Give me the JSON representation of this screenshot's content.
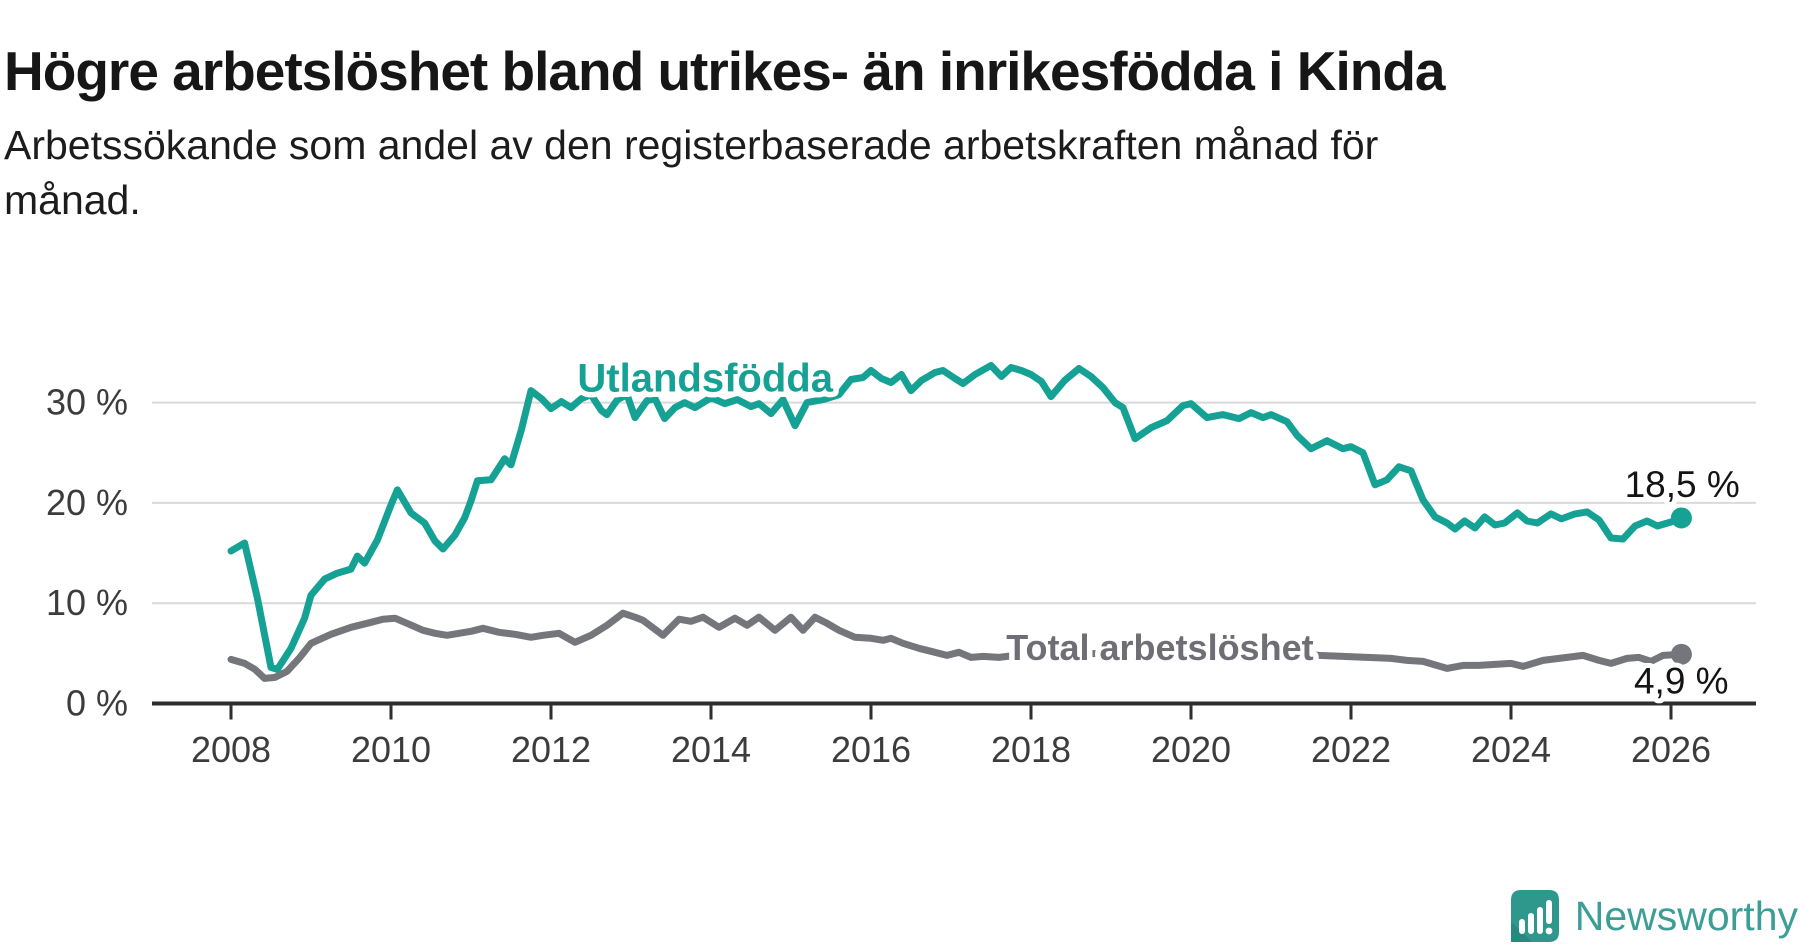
{
  "header": {
    "title": "Högre arbetslöshet bland utrikes- än inrikesfödda i Kinda",
    "subtitle_line1": "Arbetssökande som andel av den registerbaserade arbetskraften månad för",
    "subtitle_line2": "månad."
  },
  "footer": {
    "brand": "Newsworthy",
    "logo_icon": "bar-chart-exclamation-badge",
    "brand_color": "#3d9e97",
    "badge_color": "#2f988d"
  },
  "colors": {
    "accent_teal": "#16a195",
    "line_gray": "#75757c",
    "grid": "#d9d9d9",
    "axis": "#2e2e2e",
    "tick_label": "#3c3c3c",
    "value_label": "#141414"
  },
  "chart_data": {
    "type": "line",
    "title": "Högre arbetslöshet bland utrikes- än inrikesfödda i Kinda",
    "xlabel": "",
    "ylabel": "Arbetssökande som andel av den registerbaserade arbetskraften",
    "x_unit": "year (monthly data)",
    "y_unit": "percent",
    "xlim": [
      2007.6,
      2026.7
    ],
    "ylim": [
      0,
      35
    ],
    "grid": "horizontal",
    "legend_position": "inline-labels",
    "xticks": [
      {
        "value": 2008,
        "label": "2008"
      },
      {
        "value": 2010,
        "label": "2010"
      },
      {
        "value": 2012,
        "label": "2012"
      },
      {
        "value": 2014,
        "label": "2014"
      },
      {
        "value": 2016,
        "label": "2016"
      },
      {
        "value": 2018,
        "label": "2018"
      },
      {
        "value": 2020,
        "label": "2020"
      },
      {
        "value": 2022,
        "label": "2022"
      },
      {
        "value": 2024,
        "label": "2024"
      },
      {
        "value": 2026,
        "label": "2026"
      }
    ],
    "yticks": [
      {
        "value": 0,
        "label": "0 %"
      },
      {
        "value": 10,
        "label": "10 %"
      },
      {
        "value": 20,
        "label": "20 %"
      },
      {
        "value": 30,
        "label": "30 %"
      }
    ],
    "series": [
      {
        "name": "Total arbetslöshet",
        "color": "#75757c",
        "label_color": "#6e6e74",
        "end_label": "4,9 %",
        "end_value": 4.9,
        "label_at": {
          "x": 2017.69,
          "y": 4.35
        },
        "end_label_at": {
          "x": 2026.72,
          "y": 1.0
        },
        "points": [
          [
            2008.0,
            4.4
          ],
          [
            2008.17,
            4.0
          ],
          [
            2008.3,
            3.4
          ],
          [
            2008.42,
            2.5
          ],
          [
            2008.55,
            2.6
          ],
          [
            2008.7,
            3.2
          ],
          [
            2008.85,
            4.5
          ],
          [
            2009.0,
            6.0
          ],
          [
            2009.25,
            6.9
          ],
          [
            2009.5,
            7.6
          ],
          [
            2009.75,
            8.1
          ],
          [
            2009.9,
            8.4
          ],
          [
            2010.05,
            8.5
          ],
          [
            2010.2,
            8.0
          ],
          [
            2010.4,
            7.3
          ],
          [
            2010.55,
            7.0
          ],
          [
            2010.7,
            6.8
          ],
          [
            2010.85,
            7.0
          ],
          [
            2011.0,
            7.2
          ],
          [
            2011.15,
            7.5
          ],
          [
            2011.35,
            7.1
          ],
          [
            2011.55,
            6.9
          ],
          [
            2011.75,
            6.6
          ],
          [
            2011.9,
            6.8
          ],
          [
            2012.1,
            7.0
          ],
          [
            2012.3,
            6.1
          ],
          [
            2012.5,
            6.8
          ],
          [
            2012.7,
            7.8
          ],
          [
            2012.9,
            9.0
          ],
          [
            2013.05,
            8.6
          ],
          [
            2013.15,
            8.3
          ],
          [
            2013.4,
            6.8
          ],
          [
            2013.6,
            8.4
          ],
          [
            2013.75,
            8.2
          ],
          [
            2013.9,
            8.6
          ],
          [
            2014.1,
            7.6
          ],
          [
            2014.3,
            8.5
          ],
          [
            2014.45,
            7.8
          ],
          [
            2014.6,
            8.6
          ],
          [
            2014.8,
            7.3
          ],
          [
            2015.0,
            8.6
          ],
          [
            2015.15,
            7.3
          ],
          [
            2015.3,
            8.6
          ],
          [
            2015.45,
            8.0
          ],
          [
            2015.6,
            7.3
          ],
          [
            2015.8,
            6.6
          ],
          [
            2016.0,
            6.5
          ],
          [
            2016.15,
            6.3
          ],
          [
            2016.25,
            6.5
          ],
          [
            2016.4,
            6.0
          ],
          [
            2016.6,
            5.5
          ],
          [
            2016.75,
            5.2
          ],
          [
            2016.95,
            4.8
          ],
          [
            2017.1,
            5.1
          ],
          [
            2017.25,
            4.6
          ],
          [
            2017.4,
            4.7
          ],
          [
            2017.6,
            4.6
          ],
          [
            2017.8,
            4.8
          ],
          [
            2018.0,
            5.0
          ],
          [
            2018.3,
            5.2
          ],
          [
            2018.6,
            5.1
          ],
          [
            2018.9,
            4.9
          ],
          [
            2019.2,
            4.8
          ],
          [
            2019.5,
            4.8
          ],
          [
            2019.8,
            5.0
          ],
          [
            2020.1,
            5.4
          ],
          [
            2020.4,
            5.6
          ],
          [
            2020.7,
            5.5
          ],
          [
            2021.0,
            5.3
          ],
          [
            2021.3,
            5.0
          ],
          [
            2021.6,
            4.8
          ],
          [
            2021.9,
            4.7
          ],
          [
            2022.2,
            4.6
          ],
          [
            2022.5,
            4.5
          ],
          [
            2022.7,
            4.3
          ],
          [
            2022.9,
            4.2
          ],
          [
            2023.2,
            3.5
          ],
          [
            2023.4,
            3.8
          ],
          [
            2023.6,
            3.8
          ],
          [
            2023.8,
            3.9
          ],
          [
            2024.0,
            4.0
          ],
          [
            2024.15,
            3.7
          ],
          [
            2024.4,
            4.3
          ],
          [
            2024.6,
            4.5
          ],
          [
            2024.9,
            4.8
          ],
          [
            2025.1,
            4.3
          ],
          [
            2025.25,
            4.0
          ],
          [
            2025.45,
            4.5
          ],
          [
            2025.6,
            4.6
          ],
          [
            2025.75,
            4.2
          ],
          [
            2025.9,
            4.8
          ],
          [
            2026.13,
            4.9
          ]
        ]
      },
      {
        "name": "Utlandsfödda",
        "color": "#16a195",
        "label_color": "#16a195",
        "end_label": "18,5 %",
        "end_value": 18.5,
        "label_at": {
          "x": 2012.33,
          "y": 31.1
        },
        "end_label_at": {
          "x": 2026.86,
          "y": 20.6
        },
        "points": [
          [
            2008.0,
            15.2
          ],
          [
            2008.17,
            16.0
          ],
          [
            2008.33,
            10.5
          ],
          [
            2008.5,
            3.6
          ],
          [
            2008.58,
            3.4
          ],
          [
            2008.75,
            5.5
          ],
          [
            2008.92,
            8.5
          ],
          [
            2009.0,
            10.8
          ],
          [
            2009.17,
            12.4
          ],
          [
            2009.33,
            13.0
          ],
          [
            2009.5,
            13.4
          ],
          [
            2009.58,
            14.7
          ],
          [
            2009.67,
            14.0
          ],
          [
            2009.83,
            16.3
          ],
          [
            2010.0,
            19.8
          ],
          [
            2010.08,
            21.3
          ],
          [
            2010.25,
            19.0
          ],
          [
            2010.42,
            18.0
          ],
          [
            2010.55,
            16.2
          ],
          [
            2010.65,
            15.4
          ],
          [
            2010.8,
            16.8
          ],
          [
            2010.92,
            18.5
          ],
          [
            2011.0,
            20.2
          ],
          [
            2011.08,
            22.2
          ],
          [
            2011.25,
            22.3
          ],
          [
            2011.42,
            24.4
          ],
          [
            2011.5,
            23.8
          ],
          [
            2011.63,
            27.3
          ],
          [
            2011.75,
            31.2
          ],
          [
            2011.88,
            30.4
          ],
          [
            2012.0,
            29.4
          ],
          [
            2012.13,
            30.1
          ],
          [
            2012.25,
            29.5
          ],
          [
            2012.38,
            30.4
          ],
          [
            2012.5,
            30.8
          ],
          [
            2012.63,
            29.2
          ],
          [
            2012.7,
            28.8
          ],
          [
            2012.83,
            30.3
          ],
          [
            2012.95,
            30.8
          ],
          [
            2013.05,
            28.5
          ],
          [
            2013.2,
            30.2
          ],
          [
            2013.3,
            30.4
          ],
          [
            2013.42,
            28.4
          ],
          [
            2013.55,
            29.5
          ],
          [
            2013.67,
            30.0
          ],
          [
            2013.8,
            29.5
          ],
          [
            2013.92,
            30.1
          ],
          [
            2014.0,
            30.5
          ],
          [
            2014.17,
            29.9
          ],
          [
            2014.33,
            30.3
          ],
          [
            2014.5,
            29.6
          ],
          [
            2014.6,
            29.9
          ],
          [
            2014.75,
            28.9
          ],
          [
            2014.9,
            30.3
          ],
          [
            2015.05,
            27.7
          ],
          [
            2015.2,
            30.0
          ],
          [
            2015.4,
            30.3
          ],
          [
            2015.6,
            30.8
          ],
          [
            2015.75,
            32.3
          ],
          [
            2015.9,
            32.5
          ],
          [
            2016.0,
            33.2
          ],
          [
            2016.13,
            32.4
          ],
          [
            2016.25,
            32.0
          ],
          [
            2016.38,
            32.8
          ],
          [
            2016.5,
            31.2
          ],
          [
            2016.63,
            32.2
          ],
          [
            2016.8,
            33.0
          ],
          [
            2016.9,
            33.2
          ],
          [
            2017.05,
            32.4
          ],
          [
            2017.15,
            31.9
          ],
          [
            2017.3,
            32.8
          ],
          [
            2017.5,
            33.7
          ],
          [
            2017.63,
            32.6
          ],
          [
            2017.75,
            33.5
          ],
          [
            2017.88,
            33.2
          ],
          [
            2018.0,
            32.8
          ],
          [
            2018.13,
            32.1
          ],
          [
            2018.25,
            30.6
          ],
          [
            2018.42,
            32.2
          ],
          [
            2018.6,
            33.4
          ],
          [
            2018.75,
            32.6
          ],
          [
            2018.9,
            31.5
          ],
          [
            2019.05,
            30.0
          ],
          [
            2019.15,
            29.5
          ],
          [
            2019.3,
            26.4
          ],
          [
            2019.5,
            27.5
          ],
          [
            2019.7,
            28.2
          ],
          [
            2019.9,
            29.7
          ],
          [
            2020.0,
            29.9
          ],
          [
            2020.2,
            28.5
          ],
          [
            2020.4,
            28.8
          ],
          [
            2020.6,
            28.4
          ],
          [
            2020.75,
            29.0
          ],
          [
            2020.9,
            28.5
          ],
          [
            2021.0,
            28.8
          ],
          [
            2021.2,
            28.1
          ],
          [
            2021.33,
            26.7
          ],
          [
            2021.5,
            25.4
          ],
          [
            2021.7,
            26.2
          ],
          [
            2021.9,
            25.4
          ],
          [
            2022.0,
            25.6
          ],
          [
            2022.15,
            25.0
          ],
          [
            2022.3,
            21.8
          ],
          [
            2022.45,
            22.3
          ],
          [
            2022.6,
            23.6
          ],
          [
            2022.75,
            23.2
          ],
          [
            2022.9,
            20.3
          ],
          [
            2023.05,
            18.6
          ],
          [
            2023.2,
            18.0
          ],
          [
            2023.3,
            17.4
          ],
          [
            2023.42,
            18.2
          ],
          [
            2023.55,
            17.5
          ],
          [
            2023.67,
            18.6
          ],
          [
            2023.8,
            17.8
          ],
          [
            2023.92,
            18.0
          ],
          [
            2024.08,
            19.0
          ],
          [
            2024.2,
            18.2
          ],
          [
            2024.33,
            18.0
          ],
          [
            2024.5,
            18.9
          ],
          [
            2024.63,
            18.4
          ],
          [
            2024.8,
            18.9
          ],
          [
            2024.95,
            19.1
          ],
          [
            2025.1,
            18.3
          ],
          [
            2025.25,
            16.5
          ],
          [
            2025.4,
            16.4
          ],
          [
            2025.55,
            17.7
          ],
          [
            2025.7,
            18.2
          ],
          [
            2025.83,
            17.7
          ],
          [
            2026.0,
            18.1
          ],
          [
            2026.13,
            18.5
          ]
        ]
      }
    ]
  }
}
